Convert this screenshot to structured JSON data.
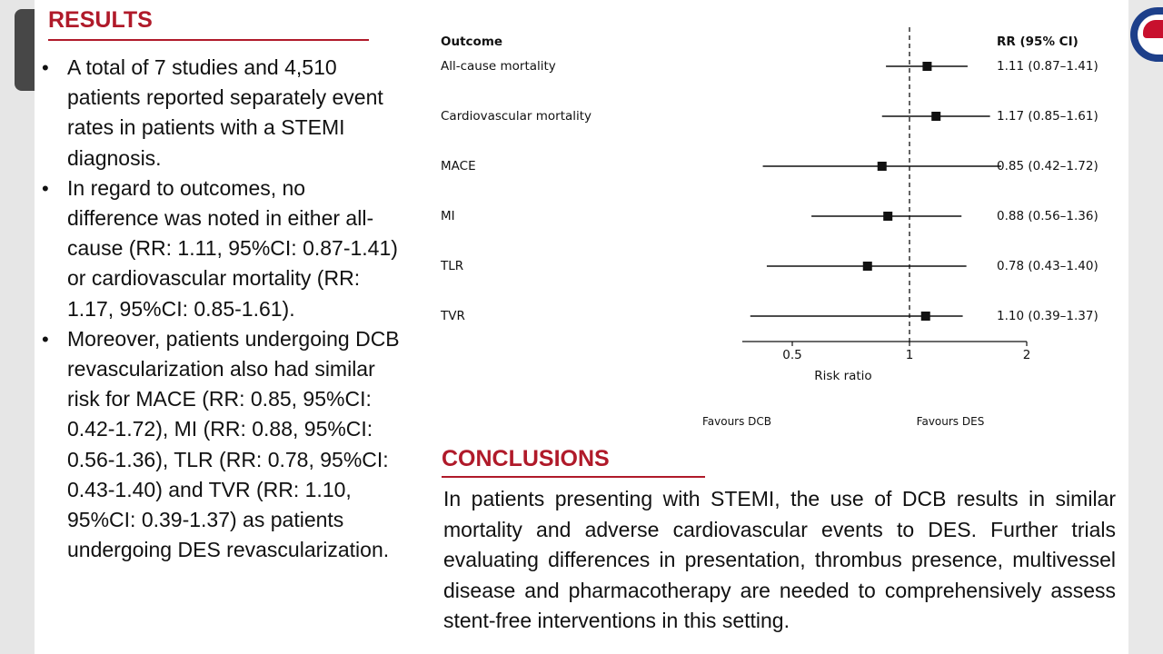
{
  "results": {
    "heading": "RESULTS",
    "bullets": [
      "A total of 7 studies and 4,510 patients reported separately event rates in patients with a STEMI diagnosis.",
      "In regard to outcomes, no difference was noted in either all-cause (RR: 1.11, 95%CI: 0.87-1.41) or cardiovascular mortality (RR: 1.17, 95%CI: 0.85-1.61).",
      "Moreover, patients undergoing DCB revascularization also had similar risk for MACE (RR: 0.85, 95%CI: 0.42-1.72), MI (RR: 0.88, 95%CI: 0.56-1.36), TLR (RR: 0.78, 95%CI: 0.43-1.40) and TVR (RR: 1.10, 95%CI: 0.39-1.37) as patients undergoing DES revascularization."
    ]
  },
  "conclusions": {
    "heading": "CONCLUSIONS",
    "text": "In patients presenting with STEMI, the use of DCB results in similar mortality and adverse cardiovascular events to DES. Further trials evaluating differences in presentation, thrombus presence, multivessel disease and pharmacotherapy are needed to comprehensively assess stent-free interventions in this setting."
  },
  "chart_data": {
    "type": "forest",
    "scale": "log",
    "outcome_header": "Outcome",
    "estimate_header": "RR (95% CI)",
    "xlabel": "Risk ratio",
    "left_label": "Favours DCB",
    "right_label": "Favours DES",
    "xticks": [
      0.5,
      1,
      2
    ],
    "xtick_labels": [
      "0.5",
      "1",
      "2"
    ],
    "xlim": [
      0.3,
      2.0
    ],
    "reference_line": 1,
    "rows": [
      {
        "outcome": "All-cause mortality",
        "rr": 1.11,
        "lo": 0.87,
        "hi": 1.41,
        "label": "1.11 (0.87–1.41)"
      },
      {
        "outcome": "Cardiovascular mortality",
        "rr": 1.17,
        "lo": 0.85,
        "hi": 1.61,
        "label": "1.17 (0.85–1.61)"
      },
      {
        "outcome": "MACE",
        "rr": 0.85,
        "lo": 0.42,
        "hi": 1.72,
        "label": "0.85 (0.42–1.72)"
      },
      {
        "outcome": "MI",
        "rr": 0.88,
        "lo": 0.56,
        "hi": 1.36,
        "label": "0.88 (0.56–1.36)"
      },
      {
        "outcome": "TLR",
        "rr": 0.78,
        "lo": 0.43,
        "hi": 1.4,
        "label": "0.78 (0.43–1.40)"
      },
      {
        "outcome": "TVR",
        "rr": 1.1,
        "lo": 0.39,
        "hi": 1.37,
        "label": "1.10 (0.39–1.37)"
      }
    ]
  }
}
